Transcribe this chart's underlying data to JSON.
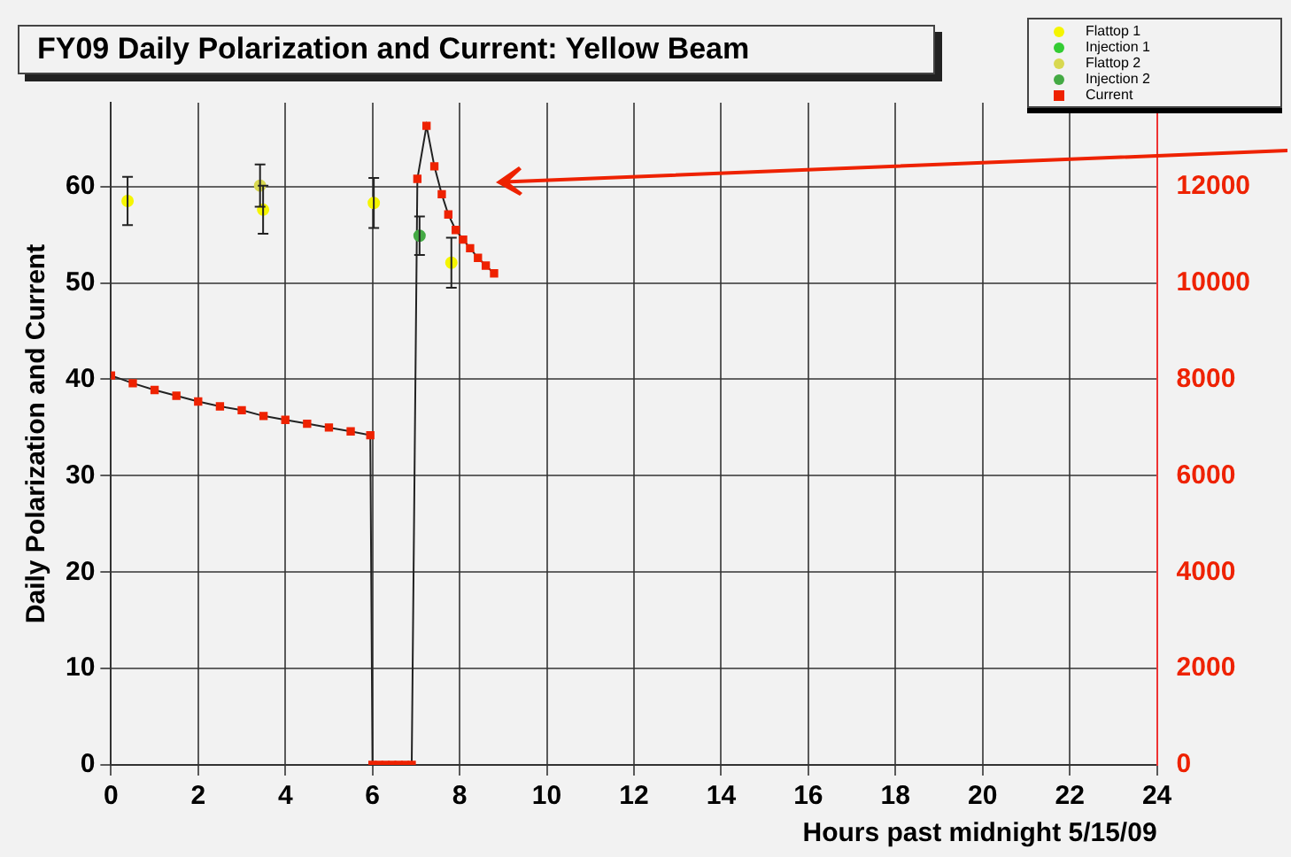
{
  "chart_data": {
    "type": "scatter",
    "title": "FY09 Daily Polarization and Current: Yellow Beam",
    "xlabel": "Hours past midnight 5/15/09",
    "ylabel": "Daily Polarization and Current",
    "xlim": [
      0,
      24
    ],
    "xticks": [
      0,
      2,
      4,
      6,
      8,
      10,
      12,
      14,
      16,
      18,
      20,
      22,
      24
    ],
    "ylim": [
      0,
      68.7
    ],
    "yticks": [
      0,
      10,
      20,
      30,
      40,
      50,
      60
    ],
    "y2lim": [
      0,
      13740
    ],
    "y2ticks": [
      0,
      2000,
      4000,
      6000,
      8000,
      10000,
      12000
    ],
    "grid": true,
    "legend": "top right",
    "marker": "circle",
    "series": [
      {
        "name": "Flattop 1",
        "color": "#f5f500",
        "x": [
          0.38,
          3.49,
          6.03,
          7.81
        ],
        "values": [
          58.5,
          57.6,
          58.3,
          52.1
        ],
        "errors": [
          2.5,
          2.5,
          2.6,
          2.6
        ]
      },
      {
        "name": "Injection 1",
        "color": "#33cc33"
      },
      {
        "name": "Flattop 2",
        "color": "#d8d850",
        "x": [
          3.42
        ],
        "values": [
          60.1
        ],
        "errors": [
          2.2
        ]
      },
      {
        "name": "Injection 2",
        "color": "#44aa44",
        "x": [
          7.08
        ],
        "values": [
          54.9
        ],
        "errors": [
          2.0
        ]
      },
      {
        "name": "Current",
        "type": "line",
        "axis": "y2",
        "marker": "square",
        "color": "#ee2200",
        "x": [
          0,
          0.5,
          1,
          1.5,
          2,
          2.5,
          3,
          3.5,
          4,
          4.5,
          5,
          5.5,
          5.95,
          6.0,
          6.15,
          6.3,
          6.45,
          6.6,
          6.75,
          6.9,
          7.03,
          7.24,
          7.42,
          7.59,
          7.74,
          7.91,
          8.08,
          8.24,
          8.42,
          8.6,
          8.79
        ],
        "values": [
          8080,
          7920,
          7780,
          7660,
          7540,
          7440,
          7360,
          7240,
          7160,
          7080,
          7000,
          6920,
          6840,
          0,
          0,
          0,
          0,
          0,
          0,
          0,
          12160,
          13260,
          12420,
          11840,
          11420,
          11100,
          10900,
          10720,
          10520,
          10360,
          10200
        ]
      }
    ]
  }
}
